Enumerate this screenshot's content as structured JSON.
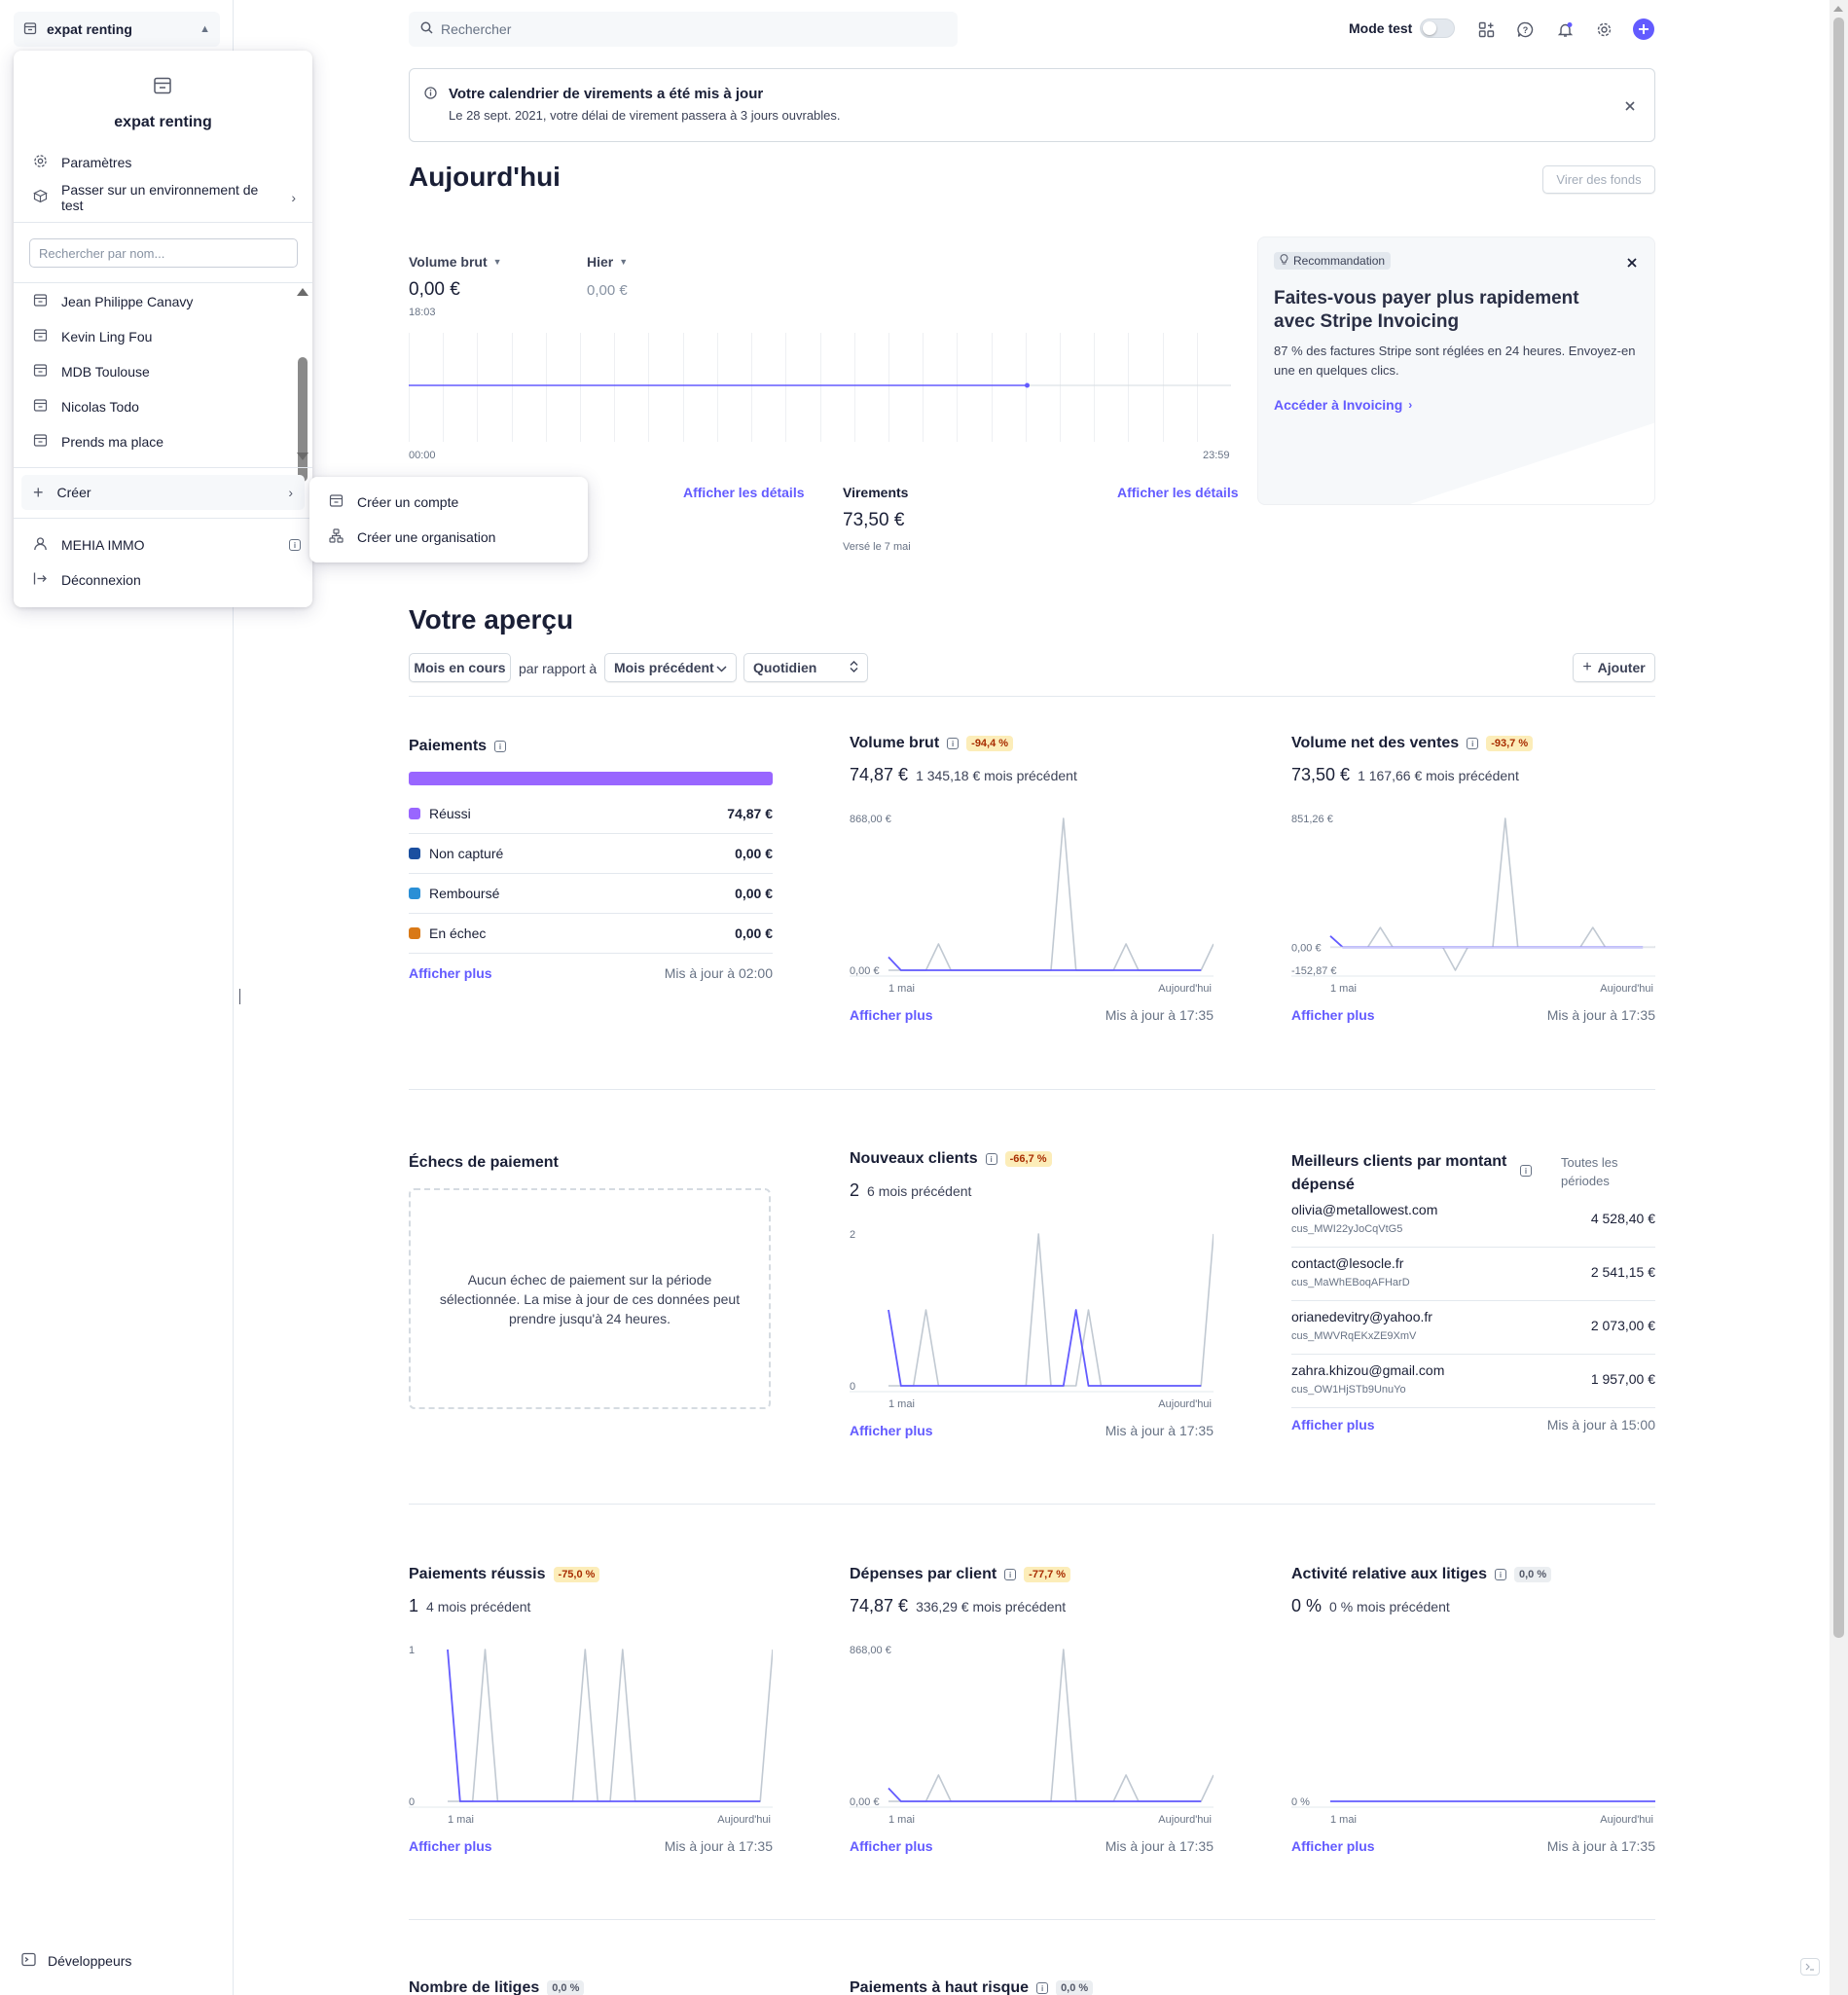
{
  "sidebar": {
    "account_name": "expat renting",
    "developers_label": "Développeurs"
  },
  "account_menu": {
    "title": "expat renting",
    "settings_label": "Paramètres",
    "test_env_label": "Passer sur un environnement de test",
    "search_placeholder": "Rechercher par nom...",
    "accounts": [
      "Jean Philippe Canavy",
      "Kevin Ling Fou",
      "MDB Toulouse",
      "Nicolas Todo",
      "Prends ma place"
    ],
    "create_label": "Créer",
    "user_label": "MEHIA IMMO",
    "logout_label": "Déconnexion"
  },
  "create_submenu": {
    "create_account": "Créer un compte",
    "create_org": "Créer une organisation"
  },
  "topbar": {
    "search_placeholder": "Rechercher",
    "test_mode_label": "Mode test"
  },
  "banner": {
    "title": "Votre calendrier de virements a été mis à jour",
    "text": "Le 28 sept. 2021, votre délai de virement passera à 3 jours ouvrables."
  },
  "today": {
    "heading": "Aujourd'hui",
    "transfer_button": "Virer des fonds",
    "gross_volume_label": "Volume brut",
    "gross_volume_value": "0,00 €",
    "gross_volume_time": "18:03",
    "yesterday_label": "Hier",
    "yesterday_value": "0,00 €",
    "axis_start": "00:00",
    "axis_end": "23:59",
    "details_link_1": "Afficher les détails",
    "transfers_label": "Virements",
    "transfers_value": "73,50 €",
    "transfers_sub": "Versé le 7 mai",
    "details_link_2": "Afficher les détails"
  },
  "recommendation": {
    "badge": "Recommandation",
    "title": "Faites-vous payer plus rapidement avec Stripe Invoicing",
    "text": "87 % des factures Stripe sont réglées en 24 heures. Envoyez-en une en quelques clics.",
    "link": "Accéder à Invoicing"
  },
  "overview": {
    "heading": "Votre aperçu",
    "period": "Mois en cours",
    "compare_label": "par rapport à",
    "compare_value": "Mois précédent",
    "granularity": "Quotidien",
    "add_button": "Ajouter"
  },
  "payments": {
    "title": "Paiements",
    "rows": [
      {
        "label": "Réussi",
        "value": "74,87 €",
        "color": "#9966ff"
      },
      {
        "label": "Non capturé",
        "value": "0,00 €",
        "color": "#1b4fa0"
      },
      {
        "label": "Remboursé",
        "value": "0,00 €",
        "color": "#2a8fd6"
      },
      {
        "label": "En échec",
        "value": "0,00 €",
        "color": "#d97917"
      }
    ],
    "more": "Afficher plus",
    "updated": "Mis à jour à 02:00"
  },
  "gross_volume": {
    "title": "Volume brut",
    "badge": "-94,4 %",
    "value": "74,87 €",
    "previous": "1 345,18 € mois précédent",
    "more": "Afficher plus",
    "updated": "Mis à jour à 17:35"
  },
  "net_volume": {
    "title": "Volume net des ventes",
    "badge": "-93,7 %",
    "value": "73,50 €",
    "previous": "1 167,66 € mois précédent",
    "more": "Afficher plus",
    "updated": "Mis à jour à 17:35"
  },
  "payment_failures": {
    "title": "Échecs de paiement",
    "empty_text": "Aucun échec de paiement sur la période sélectionnée. La mise à jour de ces données peut prendre jusqu'à 24 heures."
  },
  "new_customers": {
    "title": "Nouveaux clients",
    "badge": "-66,7 %",
    "value": "2",
    "previous": "6 mois précédent",
    "more": "Afficher plus",
    "updated": "Mis à jour à 17:35"
  },
  "top_customers": {
    "title": "Meilleurs clients par montant dépensé",
    "period": "Toutes les périodes",
    "rows": [
      {
        "email": "olivia@metallowest.com",
        "id": "cus_MWI22yJoCqVtG5",
        "amount": "4 528,40 €"
      },
      {
        "email": "contact@lesocle.fr",
        "id": "cus_MaWhEBoqAFHarD",
        "amount": "2 541,15 €"
      },
      {
        "email": "orianedevitry@yahoo.fr",
        "id": "cus_MWVRqEKxZE9XmV",
        "amount": "2 073,00 €"
      },
      {
        "email": "zahra.khizou@gmail.com",
        "id": "cus_OW1HjSTb9UnuYo",
        "amount": "1 957,00 €"
      }
    ],
    "more": "Afficher plus",
    "updated": "Mis à jour à 15:00"
  },
  "successful_payments": {
    "title": "Paiements réussis",
    "badge": "-75,0 %",
    "value": "1",
    "previous": "4 mois précédent",
    "more": "Afficher plus",
    "updated": "Mis à jour à 17:35"
  },
  "spend_per_customer": {
    "title": "Dépenses par client",
    "badge": "-77,7 %",
    "value": "74,87 €",
    "previous": "336,29 € mois précédent",
    "more": "Afficher plus",
    "updated": "Mis à jour à 17:35"
  },
  "disputes_activity": {
    "title": "Activité relative aux litiges",
    "badge": "0,0 %",
    "value": "0 %",
    "previous": "0 % mois précédent",
    "more": "Afficher plus",
    "updated": "Mis à jour à 17:35"
  },
  "bottom_cards": {
    "disputes_count_title": "Nombre de litiges",
    "disputes_count_badge": "0,0 %",
    "high_risk_title": "Paiements à haut risque",
    "high_risk_badge": "0,0 %"
  },
  "chart_data": [
    {
      "id": "today",
      "type": "line",
      "xlabel": "",
      "ylabel": "",
      "x_ticks": [
        "00:00",
        "23:59"
      ],
      "series": [
        {
          "values": [
            0,
            0
          ]
        }
      ]
    },
    {
      "id": "gross_volume",
      "type": "line",
      "x_ticks": [
        "1 mai",
        "Aujourd'hui"
      ],
      "y_ticks": [
        "868,00 €",
        "0,00 €"
      ],
      "ylim": [
        0,
        868
      ],
      "series": [
        {
          "values": [
            74.87,
            0,
            0,
            0,
            0,
            0,
            0,
            0,
            0,
            0,
            0,
            0,
            0,
            0,
            0,
            0,
            0,
            0,
            0,
            0,
            0,
            0,
            0,
            0,
            0,
            0
          ],
          "color": "#635bff"
        },
        {
          "values": [
            0,
            0,
            0,
            0,
            150,
            0,
            0,
            0,
            0,
            0,
            0,
            0,
            0,
            0,
            868,
            0,
            0,
            0,
            0,
            150,
            0,
            0,
            0,
            0,
            0,
            0,
            150
          ],
          "color": "#c1c9d2"
        }
      ]
    },
    {
      "id": "net_volume",
      "type": "line",
      "x_ticks": [
        "1 mai",
        "Aujourd'hui"
      ],
      "y_ticks": [
        "851,26 €",
        "0,00 €",
        "-152,87 €"
      ],
      "ylim": [
        -152.87,
        851.26
      ],
      "series": [
        {
          "values": [
            73.5,
            0,
            0,
            0,
            0,
            0,
            0,
            0,
            0,
            0,
            0,
            0,
            0,
            0,
            0,
            0,
            0,
            0,
            0,
            0,
            0,
            0,
            0,
            0,
            0,
            0
          ],
          "color": "#635bff"
        },
        {
          "values": [
            0,
            0,
            0,
            0,
            130,
            0,
            0,
            0,
            0,
            0,
            -152.87,
            0,
            0,
            0,
            851.26,
            0,
            0,
            0,
            0,
            0,
            0,
            130,
            0,
            0,
            0,
            0,
            0,
            130
          ],
          "color": "#c1c9d2"
        }
      ]
    },
    {
      "id": "new_customers",
      "type": "line",
      "x_ticks": [
        "1 mai",
        "Aujourd'hui"
      ],
      "y_ticks": [
        "2",
        "0"
      ],
      "ylim": [
        0,
        2
      ],
      "series": [
        {
          "values": [
            1,
            0,
            0,
            0,
            0,
            0,
            0,
            0,
            0,
            0,
            0,
            0,
            0,
            0,
            0,
            1,
            0,
            0,
            0,
            0,
            0,
            0,
            0,
            0,
            0,
            0
          ],
          "color": "#635bff"
        },
        {
          "values": [
            0,
            0,
            0,
            1,
            0,
            0,
            0,
            0,
            0,
            0,
            0,
            0,
            2,
            0,
            0,
            0,
            1,
            0,
            0,
            0,
            0,
            0,
            0,
            0,
            0,
            0,
            2
          ],
          "color": "#c1c9d2"
        }
      ]
    },
    {
      "id": "successful_payments",
      "type": "line",
      "x_ticks": [
        "1 mai",
        "Aujourd'hui"
      ],
      "y_ticks": [
        "1",
        "0"
      ],
      "ylim": [
        0,
        1
      ],
      "series": [
        {
          "values": [
            1,
            0,
            0,
            0,
            0,
            0,
            0,
            0,
            0,
            0,
            0,
            0,
            0,
            0,
            0,
            0,
            0,
            0,
            0,
            0,
            0,
            0,
            0,
            0,
            0,
            0
          ],
          "color": "#635bff"
        },
        {
          "values": [
            0,
            0,
            0,
            1,
            0,
            0,
            0,
            0,
            0,
            0,
            0,
            1,
            0,
            0,
            1,
            0,
            0,
            0,
            0,
            0,
            0,
            0,
            0,
            0,
            0,
            0,
            1
          ],
          "color": "#c1c9d2"
        }
      ]
    },
    {
      "id": "spend_per_customer",
      "type": "line",
      "x_ticks": [
        "1 mai",
        "Aujourd'hui"
      ],
      "y_ticks": [
        "868,00 €",
        "0,00 €"
      ],
      "ylim": [
        0,
        868
      ],
      "series": [
        {
          "values": [
            74.87,
            0,
            0,
            0,
            0,
            0,
            0,
            0,
            0,
            0,
            0,
            0,
            0,
            0,
            0,
            0,
            0,
            0,
            0,
            0,
            0,
            0,
            0,
            0,
            0,
            0
          ],
          "color": "#635bff"
        },
        {
          "values": [
            0,
            0,
            0,
            0,
            150,
            0,
            0,
            0,
            0,
            0,
            0,
            0,
            0,
            0,
            868,
            0,
            0,
            0,
            0,
            150,
            0,
            0,
            0,
            0,
            0,
            0,
            150
          ],
          "color": "#c1c9d2"
        }
      ]
    },
    {
      "id": "disputes_activity",
      "type": "line",
      "x_ticks": [
        "1 mai",
        "Aujourd'hui"
      ],
      "y_ticks": [
        "0 %"
      ],
      "ylim": [
        0,
        1
      ],
      "series": [
        {
          "values": [
            0,
            0,
            0,
            0,
            0,
            0,
            0,
            0,
            0,
            0,
            0,
            0,
            0,
            0,
            0,
            0,
            0,
            0,
            0,
            0,
            0,
            0,
            0,
            0,
            0,
            0,
            0
          ],
          "color": "#635bff"
        }
      ]
    }
  ]
}
